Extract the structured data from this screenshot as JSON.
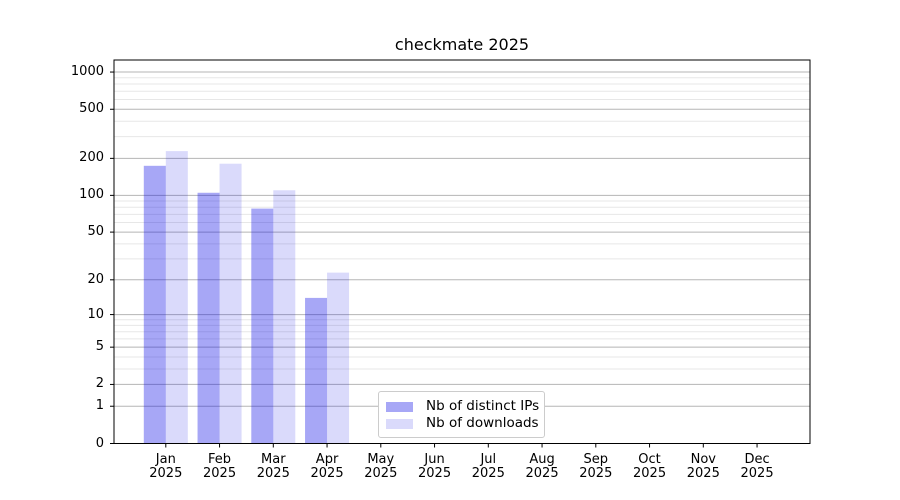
{
  "window": {
    "title": "checkmate 2025"
  },
  "chart_data": {
    "type": "bar",
    "title": "checkmate 2025",
    "x_months": [
      "Jan",
      "Feb",
      "Mar",
      "Apr",
      "May",
      "Jun",
      "Jul",
      "Aug",
      "Sep",
      "Oct",
      "Nov",
      "Dec"
    ],
    "x_year": "2025",
    "series": [
      {
        "name": "Nb of distinct IPs",
        "color": "#0a0ae6",
        "opacity": 0.36,
        "values": [
          174,
          105,
          78,
          14,
          null,
          null,
          null,
          null,
          null,
          null,
          null,
          null
        ]
      },
      {
        "name": "Nb of downloads",
        "color": "#0a0ae6",
        "opacity": 0.15,
        "values": [
          229,
          181,
          110,
          23,
          null,
          null,
          null,
          null,
          null,
          null,
          null,
          null
        ]
      }
    ],
    "y_axis": {
      "scale": "log10(1+y)",
      "ticks": [
        0,
        1,
        2,
        5,
        10,
        20,
        50,
        100,
        200,
        500,
        1000
      ],
      "minor_ticks": [
        3,
        4,
        6,
        7,
        8,
        9,
        30,
        40,
        60,
        70,
        80,
        90,
        300,
        400,
        600,
        700,
        800,
        900
      ],
      "range": [
        0,
        1250
      ]
    },
    "grid": {
      "major": true,
      "minor": true
    },
    "legend_position": "bottom-center",
    "colors": {
      "bar_distinct_ips_rendered": "#a6a6f2",
      "bar_downloads_rendered": "#dadaf9",
      "grid_major": "#b5b5b5",
      "grid_minor": "#e7e7e7",
      "spine": "#000000",
      "background": "#ffffff"
    }
  },
  "legend": {
    "items": [
      {
        "label": "Nb of distinct IPs"
      },
      {
        "label": "Nb of downloads"
      }
    ]
  }
}
